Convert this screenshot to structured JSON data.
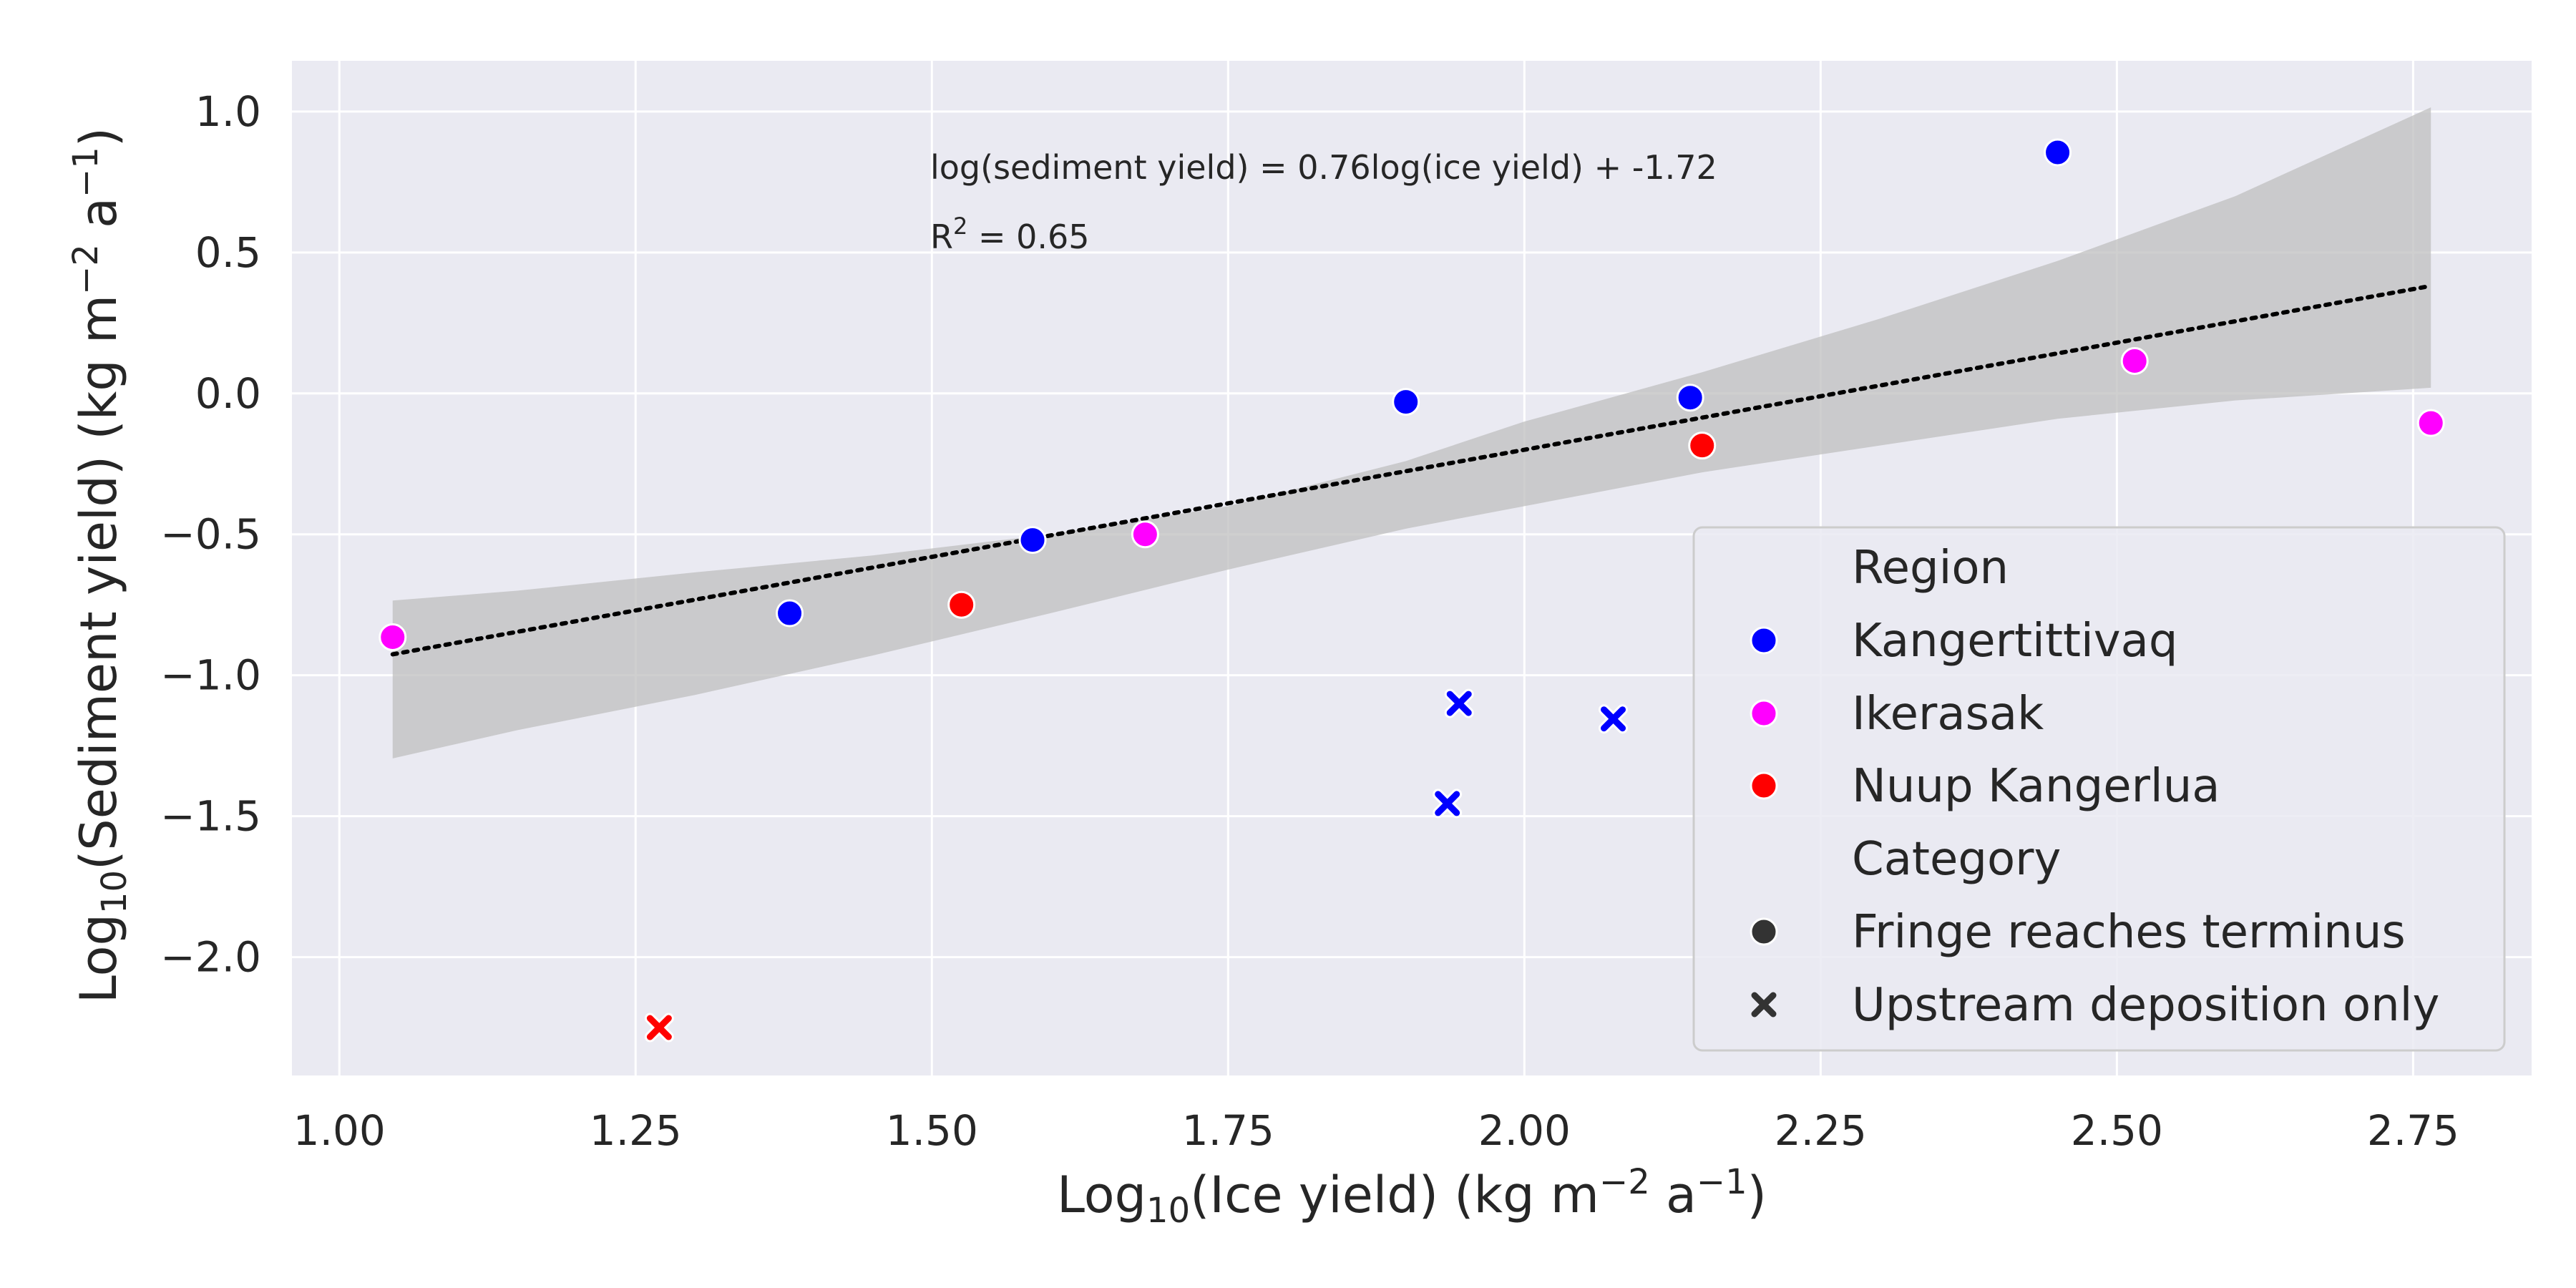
{
  "chart_data": {
    "type": "scatter",
    "title": "",
    "xlabel": {
      "prefix": "Log",
      "sub": "10",
      "middle": "(Ice yield) (kg m",
      "sup1": "−2",
      "mid2": " a",
      "sup2": "−1",
      "suffix": ")"
    },
    "ylabel": {
      "prefix": "Log",
      "sub": "10",
      "middle": "(Sediment yield) (kg m",
      "sup1": "−2",
      "mid2": " a",
      "sup2": "−1",
      "suffix": ")"
    },
    "xlim": [
      0.96,
      2.85
    ],
    "ylim": [
      -2.42,
      1.18
    ],
    "xticks": [
      1.0,
      1.25,
      1.5,
      1.75,
      2.0,
      2.25,
      2.5,
      2.75
    ],
    "xtick_labels": [
      "1.00",
      "1.25",
      "1.50",
      "1.75",
      "2.00",
      "2.25",
      "2.50",
      "2.75"
    ],
    "yticks": [
      1.0,
      0.5,
      0.0,
      -0.5,
      -1.0,
      -1.5,
      -2.0
    ],
    "ytick_labels": [
      "1.0",
      "0.5",
      "0.0",
      "−0.5",
      "−1.0",
      "−1.5",
      "−2.0"
    ],
    "grid": true,
    "legend_placement": "lower-right",
    "region_colors": {
      "Kangertittivaq": "#0000ff",
      "Ikerasak": "#ff00ff",
      "Nuup Kangerlua": "#ff0000"
    },
    "points": [
      {
        "x": 1.045,
        "y": -0.865,
        "region": "Ikerasak",
        "category": "Fringe reaches terminus"
      },
      {
        "x": 1.38,
        "y": -0.78,
        "region": "Kangertittivaq",
        "category": "Fringe reaches terminus"
      },
      {
        "x": 1.525,
        "y": -0.75,
        "region": "Nuup Kangerlua",
        "category": "Fringe reaches terminus"
      },
      {
        "x": 1.585,
        "y": -0.52,
        "region": "Kangertittivaq",
        "category": "Fringe reaches terminus"
      },
      {
        "x": 1.68,
        "y": -0.5,
        "region": "Ikerasak",
        "category": "Fringe reaches terminus"
      },
      {
        "x": 1.9,
        "y": -0.03,
        "region": "Kangertittivaq",
        "category": "Fringe reaches terminus"
      },
      {
        "x": 2.14,
        "y": -0.015,
        "region": "Kangertittivaq",
        "category": "Fringe reaches terminus"
      },
      {
        "x": 2.15,
        "y": -0.185,
        "region": "Nuup Kangerlua",
        "category": "Fringe reaches terminus"
      },
      {
        "x": 2.45,
        "y": 0.855,
        "region": "Kangertittivaq",
        "category": "Fringe reaches terminus"
      },
      {
        "x": 2.515,
        "y": 0.115,
        "region": "Ikerasak",
        "category": "Fringe reaches terminus"
      },
      {
        "x": 2.765,
        "y": -0.105,
        "region": "Ikerasak",
        "category": "Fringe reaches terminus"
      },
      {
        "x": 1.27,
        "y": -2.25,
        "region": "Nuup Kangerlua",
        "category": "Upstream deposition only"
      },
      {
        "x": 1.935,
        "y": -1.455,
        "region": "Kangertittivaq",
        "category": "Upstream deposition only"
      },
      {
        "x": 1.945,
        "y": -1.1,
        "region": "Kangertittivaq",
        "category": "Upstream deposition only"
      },
      {
        "x": 2.075,
        "y": -1.155,
        "region": "Kangertittivaq",
        "category": "Upstream deposition only"
      }
    ],
    "fit_line": {
      "slope": 0.76,
      "intercept": -1.72,
      "x_range": [
        1.045,
        2.765
      ],
      "style": "dotted",
      "color": "#000000"
    },
    "confidence_band": {
      "color": "#bfbfbf",
      "x": [
        1.045,
        1.15,
        1.3,
        1.45,
        1.6,
        1.75,
        1.9,
        2.0,
        2.15,
        2.3,
        2.45,
        2.6,
        2.765
      ],
      "upper": [
        -0.735,
        -0.7,
        -0.635,
        -0.575,
        -0.5,
        -0.4,
        -0.24,
        -0.1,
        0.075,
        0.265,
        0.47,
        0.7,
        1.015
      ],
      "lower": [
        -1.295,
        -1.195,
        -1.07,
        -0.93,
        -0.78,
        -0.625,
        -0.48,
        -0.4,
        -0.28,
        -0.185,
        -0.09,
        -0.025,
        0.02
      ]
    },
    "annotations": {
      "equation": "log(sediment yield) = 0.76log(ice yield) + -1.72",
      "r2_base": "R",
      "r2_sup": "2",
      "r2_rest": " = 0.65"
    },
    "legend": {
      "region_title": "Region",
      "regions": [
        "Kangertittivaq",
        "Ikerasak",
        "Nuup Kangerlua"
      ],
      "category_title": "Category",
      "categories": [
        {
          "label": "Fringe reaches terminus",
          "marker": "circle"
        },
        {
          "label": "Upstream deposition only",
          "marker": "x"
        }
      ],
      "marker_color": "#333333"
    }
  }
}
